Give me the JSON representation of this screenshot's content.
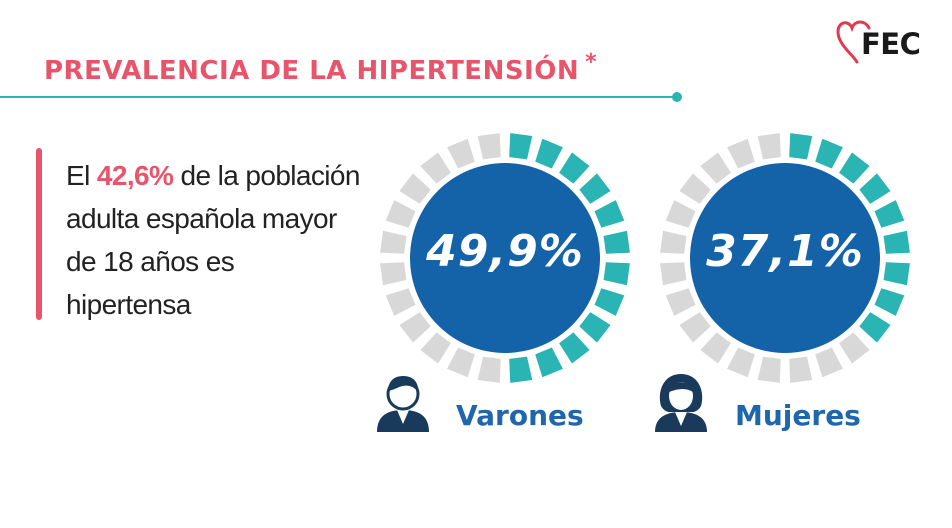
{
  "logo": {
    "text": "FEC",
    "icon": "heart-outline-icon",
    "color": "#e03a4e"
  },
  "title": {
    "text": "PREVALENCIA DE LA HIPERTENSIÓN",
    "asterisk": "*"
  },
  "statement": {
    "prefix": "El ",
    "highlight": "42,6%",
    "suffix": " de la población adulta española mayor de 18 años es hipertensa"
  },
  "groups": [
    {
      "label": "Varones",
      "value_text": "49,9%",
      "value": 49.9,
      "icon": "man-avatar-icon"
    },
    {
      "label": "Mujeres",
      "value_text": "37,1%",
      "value": 37.1,
      "icon": "woman-avatar-icon"
    }
  ],
  "colors": {
    "accent": "#e8546a",
    "teal": "#2ab4b4",
    "gray_segment": "#d8d8d8",
    "circle_blue": "#1462a8",
    "label_blue": "#1e66ae"
  }
}
